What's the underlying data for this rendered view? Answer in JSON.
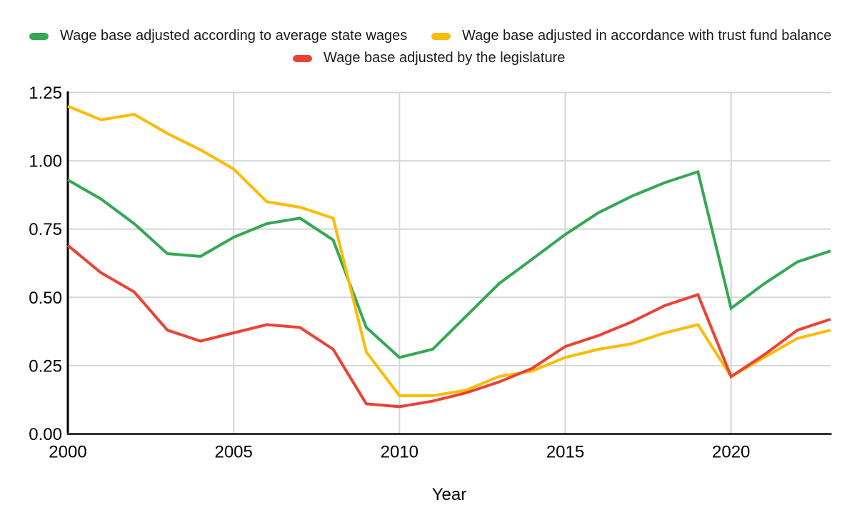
{
  "legend": {
    "items": [
      {
        "id": "avg-state-wages",
        "label": "Wage base adjusted according to average state wages",
        "color": "#34a853"
      },
      {
        "id": "trust-fund-balance",
        "label": "Wage base adjusted in accordance with trust fund balance",
        "color": "#fbbc04"
      },
      {
        "id": "legislature",
        "label": "Wage base adjusted by the legislature",
        "color": "#ea4335"
      }
    ]
  },
  "chart_data": {
    "type": "line",
    "title": "",
    "xlabel": "Year",
    "ylabel": "",
    "xlim": [
      2000,
      2023
    ],
    "ylim": [
      0,
      1.25
    ],
    "grid": true,
    "legend_position": "top",
    "x_ticks": [
      2000,
      2005,
      2010,
      2015,
      2020
    ],
    "y_ticks": [
      "0.00",
      "0.25",
      "0.50",
      "0.75",
      "1.00",
      "1.25"
    ],
    "x": [
      2000,
      2001,
      2002,
      2003,
      2004,
      2005,
      2006,
      2007,
      2008,
      2009,
      2010,
      2011,
      2012,
      2013,
      2014,
      2015,
      2016,
      2017,
      2018,
      2019,
      2020,
      2021,
      2022,
      2023
    ],
    "series": [
      {
        "id": "avg-state-wages",
        "name": "Wage base adjusted according to average state wages",
        "color": "#34a853",
        "values": [
          0.93,
          0.86,
          0.77,
          0.66,
          0.65,
          0.72,
          0.77,
          0.79,
          0.71,
          0.39,
          0.28,
          0.31,
          0.43,
          0.55,
          0.64,
          0.73,
          0.81,
          0.87,
          0.92,
          0.96,
          0.46,
          0.55,
          0.63,
          0.67
        ]
      },
      {
        "id": "trust-fund-balance",
        "name": "Wage base adjusted in accordance with trust fund balance",
        "color": "#fbbc04",
        "values": [
          1.2,
          1.15,
          1.17,
          1.1,
          1.04,
          0.97,
          0.85,
          0.83,
          0.79,
          0.3,
          0.14,
          0.14,
          0.16,
          0.21,
          0.23,
          0.28,
          0.31,
          0.33,
          0.37,
          0.4,
          0.21,
          0.28,
          0.35,
          0.38
        ]
      },
      {
        "id": "legislature",
        "name": "Wage base adjusted by the legislature",
        "color": "#ea4335",
        "values": [
          0.69,
          0.59,
          0.52,
          0.38,
          0.34,
          0.37,
          0.4,
          0.39,
          0.31,
          0.11,
          0.1,
          0.12,
          0.15,
          0.19,
          0.24,
          0.32,
          0.36,
          0.41,
          0.47,
          0.51,
          0.21,
          0.29,
          0.38,
          0.42
        ]
      }
    ],
    "axis_colors": {
      "y_axis": "#000000",
      "x_axis": "#333333",
      "gridline": "#d6d6d6",
      "tick_text": "#000000"
    }
  }
}
